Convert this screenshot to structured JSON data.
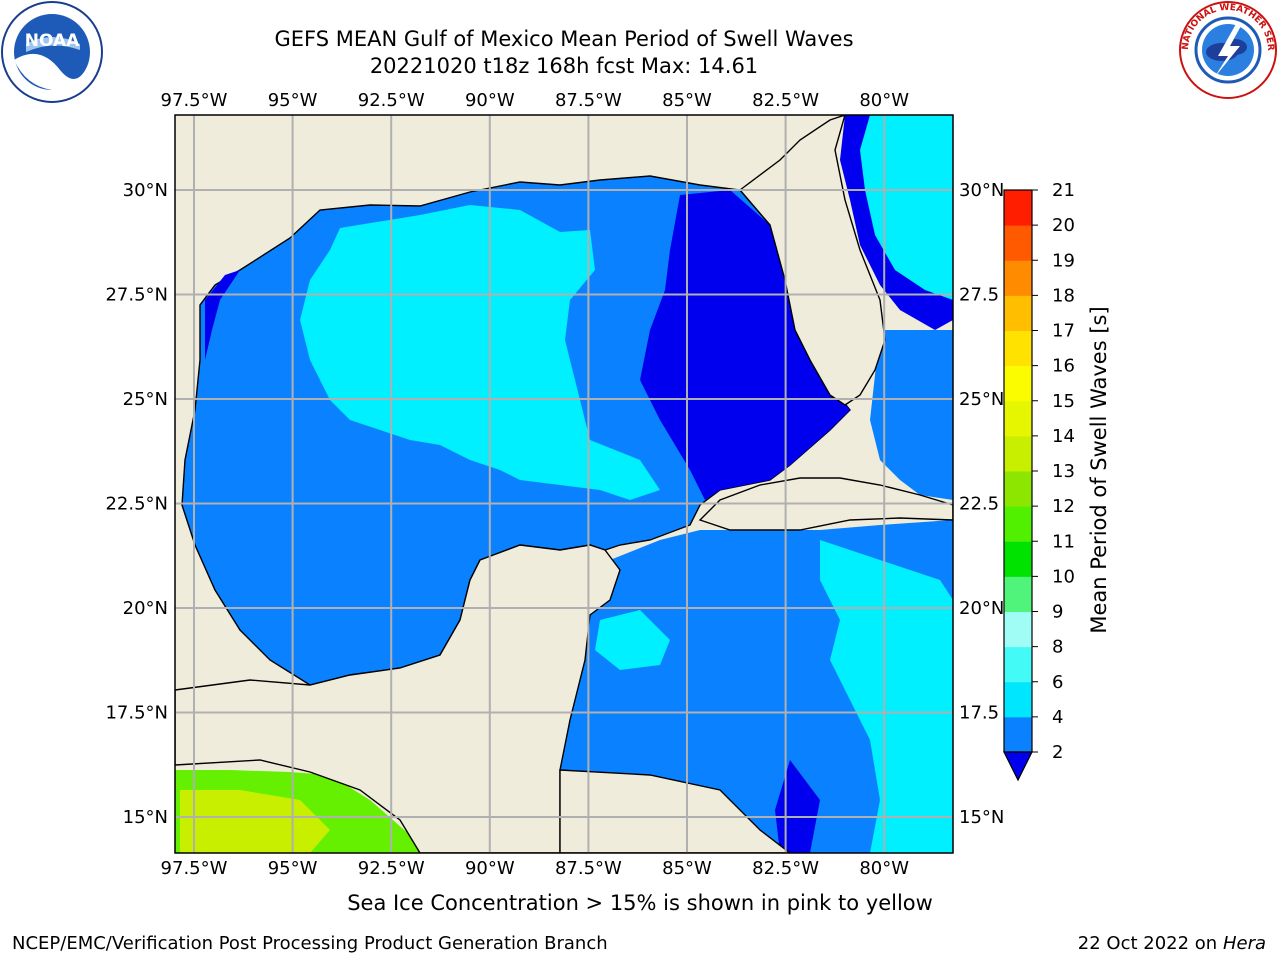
{
  "title_line1": "GEFS MEAN Gulf of Mexico Mean Period of Swell Waves",
  "title_line2": "20221020 t18z 168h fcst   Max: 14.61",
  "note": "Sea Ice Concentration > 15% is shown in pink to yellow",
  "credit": "NCEP/EMC/Verification Post Processing Product Generation Branch",
  "date_text": "22 Oct 2022 on ",
  "host": "Hera",
  "logos": {
    "left": "NOAA",
    "right": "NATIONAL WEATHER SERVICE"
  },
  "map": {
    "lon_labels": [
      "97.5°W",
      "95°W",
      "92.5°W",
      "90°W",
      "87.5°W",
      "85°W",
      "82.5°W",
      "80°W"
    ],
    "lat_labels_left": [
      "30°N",
      "27.5°N",
      "25°N",
      "22.5°N",
      "20°N",
      "17.5°N",
      "15°N"
    ],
    "lat_labels_right": [
      "30°N",
      "27.5",
      "25°N",
      "22.5",
      "20°N",
      "17.5",
      "15°N"
    ],
    "land_color": "#efecdb",
    "grid_color": "#b0b0b0"
  },
  "colorbar": {
    "label": "Mean Period of Swell Waves [s]",
    "ticks": [
      "2",
      "4",
      "6",
      "8",
      "9",
      "10",
      "11",
      "12",
      "13",
      "14",
      "15",
      "16",
      "17",
      "18",
      "19",
      "20",
      "21"
    ],
    "colors": [
      "#0a82ff",
      "#00e6ff",
      "#44faf6",
      "#9ffdf6",
      "#50f47a",
      "#00e300",
      "#50f000",
      "#8ce600",
      "#c8ef00",
      "#e6f600",
      "#fcfc00",
      "#ffe200",
      "#ffbe00",
      "#ff8c00",
      "#ff5a00",
      "#ff1e00"
    ],
    "under_color": "#0000ee"
  },
  "chart_data": {
    "type": "heatmap",
    "title": "GEFS MEAN Gulf of Mexico Mean Period of Swell Waves",
    "subtitle": "20221020 t18z 168h fcst   Max: 14.61",
    "colorbar_label": "Mean Period of Swell Waves [s]",
    "color_levels": [
      2,
      4,
      6,
      8,
      9,
      10,
      11,
      12,
      13,
      14,
      15,
      16,
      17,
      18,
      19,
      20,
      21
    ],
    "max_value": 14.61,
    "extent": {
      "lon": [
        -98,
        -78.5
      ],
      "lat": [
        14,
        31.6
      ]
    },
    "grid": true
  }
}
